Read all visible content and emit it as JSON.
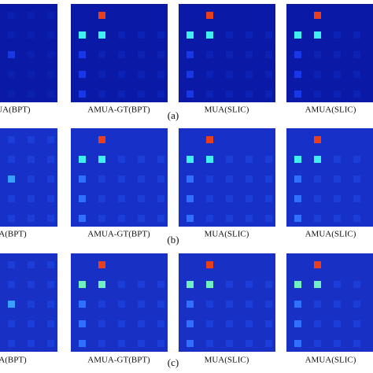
{
  "figure": {
    "rows": [
      {
        "label": "(a)",
        "captions": [
          "MUA(BPT)",
          "AMUA-GT(BPT)",
          "MUA(SLIC)",
          "AMUA(SLIC)"
        ]
      },
      {
        "label": "(b)",
        "captions": [
          "UA(BPT)",
          "AMUA-GT(BPT)",
          "MUA(SLIC)",
          "AMUA(SLIC)"
        ]
      },
      {
        "label": "(c)",
        "captions": [
          "UA(BPT)",
          "AMUA-GT(BPT)",
          "MUA(SLIC)",
          "AMUA(SLIC)"
        ]
      }
    ]
  }
}
